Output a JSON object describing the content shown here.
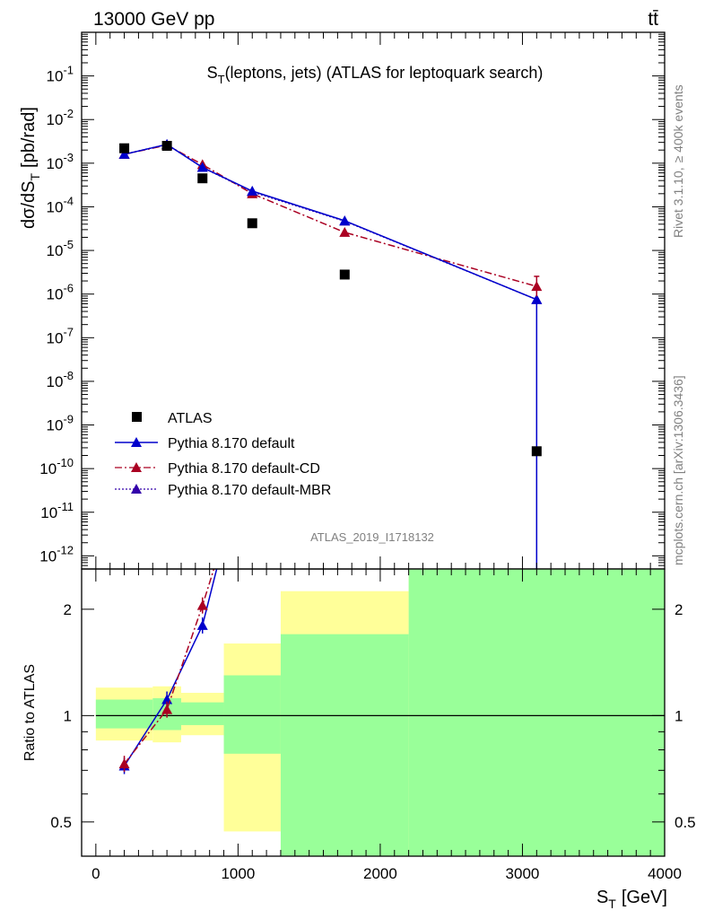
{
  "header": {
    "left": "13000 GeV pp",
    "right": "tt̄"
  },
  "side_text": {
    "version": "Rivet 3.1.10,",
    "events": "≥ 400k events",
    "source": "mcplots.cern.ch [arXiv:1306.3436]"
  },
  "colors": {
    "data": "#000000",
    "default": "#0000cc",
    "cd": "#aa0022",
    "mbr": "#3300aa",
    "band_inner": "#99ff99",
    "band_outer": "#ffff99"
  },
  "chart_data": [
    {
      "type": "scatter",
      "panel": "main",
      "title": "S_T(leptons, jets) (ATLAS for leptoquark search)",
      "title_main": "S",
      "title_sub": "T",
      "title_rest": "(leptons, jets) (ATLAS for leptoquark search)",
      "analysis_label": "ATLAS_2019_I1718132",
      "ylabel_main": "dσ/dS",
      "ylabel_sub": "T",
      "ylabel_unit": "[pb/rad]",
      "yscale": "log",
      "ylim": [
        5e-13,
        1
      ],
      "xlim": [
        -100,
        4000
      ],
      "ytick_exponents": [
        -12,
        -11,
        -10,
        -9,
        -8,
        -7,
        -6,
        -5,
        -4,
        -3,
        -2,
        -1
      ],
      "legend_placement": "lower-left",
      "series": [
        {
          "name": "ATLAS",
          "key": "data",
          "marker": "square",
          "x": [
            200,
            500,
            750,
            1100,
            1750,
            3100
          ],
          "y": [
            0.0022,
            0.0025,
            0.00045,
            4.2e-05,
            2.8e-06,
            2.5e-10
          ]
        },
        {
          "name": "Pythia 8.170 default",
          "key": "default",
          "marker": "triangle",
          "line": "solid",
          "x": [
            200,
            500,
            750,
            1100,
            1750,
            3100
          ],
          "y": [
            0.0016,
            0.0027,
            0.0008,
            0.00023,
            4.8e-05,
            7.5e-07
          ],
          "drop_to": 5e-13
        },
        {
          "name": "Pythia 8.170 default-CD",
          "key": "cd",
          "marker": "triangle",
          "line": "dashdot",
          "x": [
            200,
            500,
            750,
            1100,
            1750,
            3100
          ],
          "y": [
            0.0016,
            0.0026,
            0.00093,
            0.0002,
            2.6e-05,
            1.5e-06
          ]
        },
        {
          "name": "Pythia 8.170 default-MBR",
          "key": "mbr",
          "marker": "triangle",
          "line": "dotted",
          "x": [
            200,
            500,
            750,
            1100,
            1750,
            3100
          ],
          "y": [
            0.0016,
            0.0027,
            0.0008,
            0.00022,
            4.7e-05,
            7.5e-07
          ]
        }
      ]
    },
    {
      "type": "line",
      "panel": "ratio",
      "ylabel": "Ratio to ATLAS",
      "xlabel_main": "S",
      "xlabel_sub": "T",
      "xlabel_unit": "[GeV]",
      "yscale": "log",
      "ylim": [
        0.4,
        2.6
      ],
      "xlim": [
        -100,
        4000
      ],
      "xticks": [
        0,
        1000,
        2000,
        3000,
        4000
      ],
      "yticks": [
        0.5,
        1,
        2
      ],
      "reference_line": 1,
      "bands": [
        {
          "x0": 0,
          "x1": 400,
          "inner": [
            0.92,
            1.11
          ],
          "outer": [
            0.85,
            1.2
          ]
        },
        {
          "x0": 400,
          "x1": 600,
          "inner": [
            0.91,
            1.12
          ],
          "outer": [
            0.84,
            1.21
          ]
        },
        {
          "x0": 600,
          "x1": 900,
          "inner": [
            0.94,
            1.09
          ],
          "outer": [
            0.88,
            1.16
          ]
        },
        {
          "x0": 900,
          "x1": 1300,
          "inner": [
            0.78,
            1.3
          ],
          "outer": [
            0.47,
            1.6
          ]
        },
        {
          "x0": 1300,
          "x1": 2200,
          "inner": [
            0.3,
            1.7
          ],
          "outer": [
            0.3,
            2.25
          ]
        },
        {
          "x0": 2200,
          "x1": 4000,
          "inner": [
            0.3,
            2.6
          ],
          "outer": [
            0.3,
            2.6
          ]
        }
      ],
      "series": [
        {
          "name": "Pythia 8.170 default",
          "key": "default",
          "x": [
            200,
            500,
            750,
            850
          ],
          "y": [
            0.72,
            1.11,
            1.8,
            2.6
          ]
        },
        {
          "name": "Pythia 8.170 default-CD",
          "key": "cd",
          "x": [
            200,
            500,
            750,
            830
          ],
          "y": [
            0.73,
            1.04,
            2.05,
            2.6
          ]
        }
      ]
    }
  ]
}
